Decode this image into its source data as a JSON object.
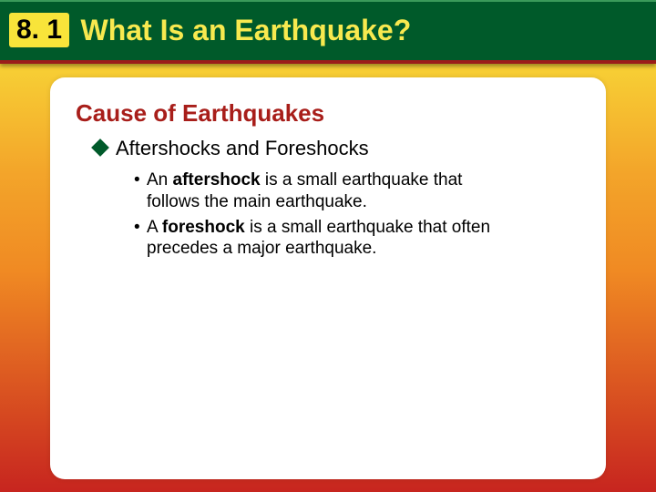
{
  "header": {
    "section_number": "8. 1",
    "title": "What Is an Earthquake?"
  },
  "content": {
    "subtitle": "Cause of Earthquakes",
    "subitem": "Aftershocks and Foreshocks",
    "bullets": [
      {
        "pre": "An ",
        "bold": "aftershock",
        "post": " is a small earthquake that follows the main earthquake."
      },
      {
        "pre": "A ",
        "bold": "foreshock",
        "post": " is a small earthquake that often precedes a major earthquake."
      }
    ]
  },
  "colors": {
    "header_bg": "#005a2a",
    "chip_bg": "#f8e43a",
    "title_color": "#f8e94f",
    "subtitle_color": "#a81e1a",
    "diamond_color": "#005a2a",
    "panel_bg": "#ffffff"
  }
}
